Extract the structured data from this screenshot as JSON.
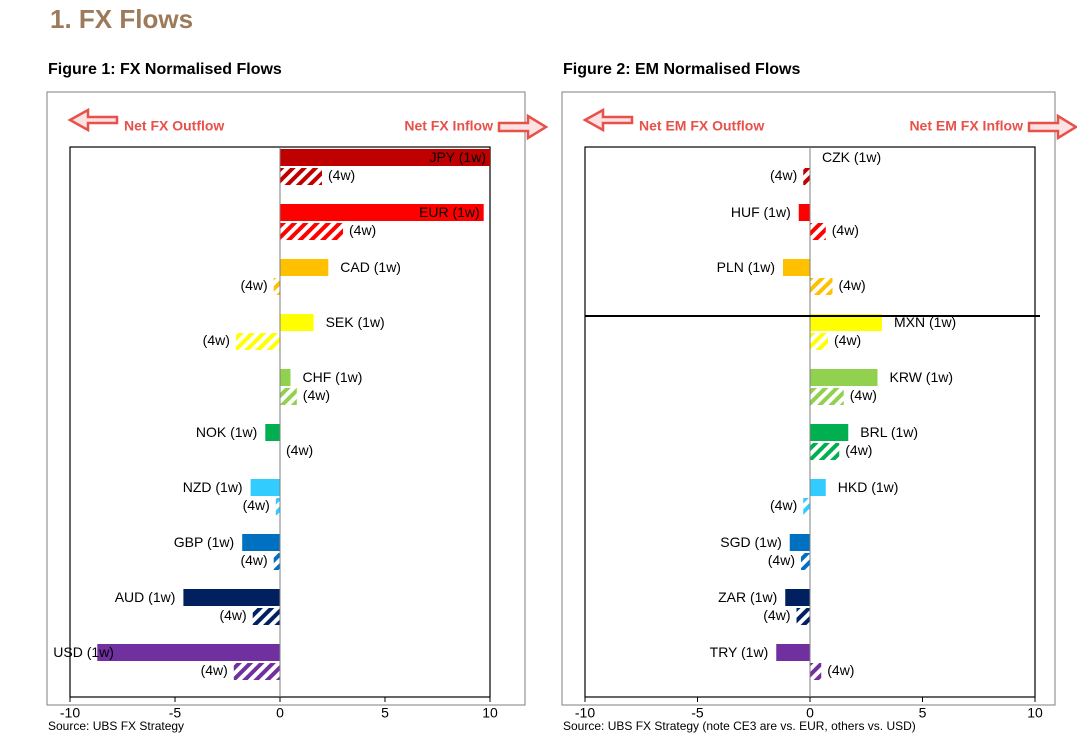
{
  "section_title": "1. FX Flows",
  "colors": {
    "title_brown": "#9c7a5a",
    "arrow_red": "#e8504a",
    "arrow_fill": "#fbe3e3"
  },
  "chart_data": [
    {
      "type": "bar",
      "orientation": "horizontal",
      "title": "Figure 1: FX Normalised Flows",
      "source": "Source:  UBS FX Strategy",
      "outflow_label": "Net FX Outflow",
      "inflow_label": "Net FX Inflow",
      "xlim": [
        -10,
        10
      ],
      "xticks": [
        -10,
        -5,
        0,
        5,
        10
      ],
      "series_labels": {
        "w1": "(1w)",
        "w4": "(4w)"
      },
      "categories": [
        "JPY",
        "EUR",
        "CAD",
        "SEK",
        "CHF",
        "NOK",
        "NZD",
        "GBP",
        "AUD",
        "USD"
      ],
      "colors": [
        "#c00000",
        "#ff0000",
        "#ffc000",
        "#ffff00",
        "#92d050",
        "#00b050",
        "#33ccff",
        "#0070c0",
        "#002060",
        "#7030a0"
      ],
      "label_inside": [
        true,
        true,
        false,
        false,
        false,
        false,
        false,
        false,
        false,
        true
      ],
      "w1": [
        10,
        9.7,
        2.3,
        1.6,
        0.5,
        -0.7,
        -1.4,
        -1.8,
        -4.6,
        -8.7
      ],
      "w4": [
        2.0,
        3.0,
        -0.3,
        -2.1,
        0.8,
        0.0,
        -0.2,
        -0.3,
        -1.3,
        -2.2
      ],
      "hline_after": null
    },
    {
      "type": "bar",
      "orientation": "horizontal",
      "title": "Figure 2: EM Normalised Flows",
      "source": "Source:  UBS FX Strategy (note CE3 are vs. EUR, others vs. USD)",
      "outflow_label": "Net EM FX Outflow",
      "inflow_label": "Net EM FX Inflow",
      "xlim": [
        -10,
        10
      ],
      "xticks": [
        -10,
        -5,
        0,
        5,
        10
      ],
      "series_labels": {
        "w1": "(1w)",
        "w4": "(4w)"
      },
      "categories": [
        "CZK",
        "HUF",
        "PLN",
        "MXN",
        "KRW",
        "BRL",
        "HKD",
        "SGD",
        "ZAR",
        "TRY"
      ],
      "colors": [
        "#c00000",
        "#ff0000",
        "#ffc000",
        "#ffff00",
        "#92d050",
        "#00b050",
        "#33ccff",
        "#0070c0",
        "#002060",
        "#7030a0"
      ],
      "label_inside": [
        false,
        false,
        false,
        false,
        false,
        false,
        false,
        false,
        false,
        false
      ],
      "w1": [
        0.0,
        -0.5,
        -1.2,
        3.2,
        3.0,
        1.7,
        0.7,
        -0.9,
        -1.1,
        -1.5
      ],
      "w4": [
        -0.3,
        0.7,
        1.0,
        0.8,
        1.5,
        1.3,
        -0.3,
        -0.4,
        -0.6,
        0.5
      ],
      "hline_after": 2
    }
  ]
}
